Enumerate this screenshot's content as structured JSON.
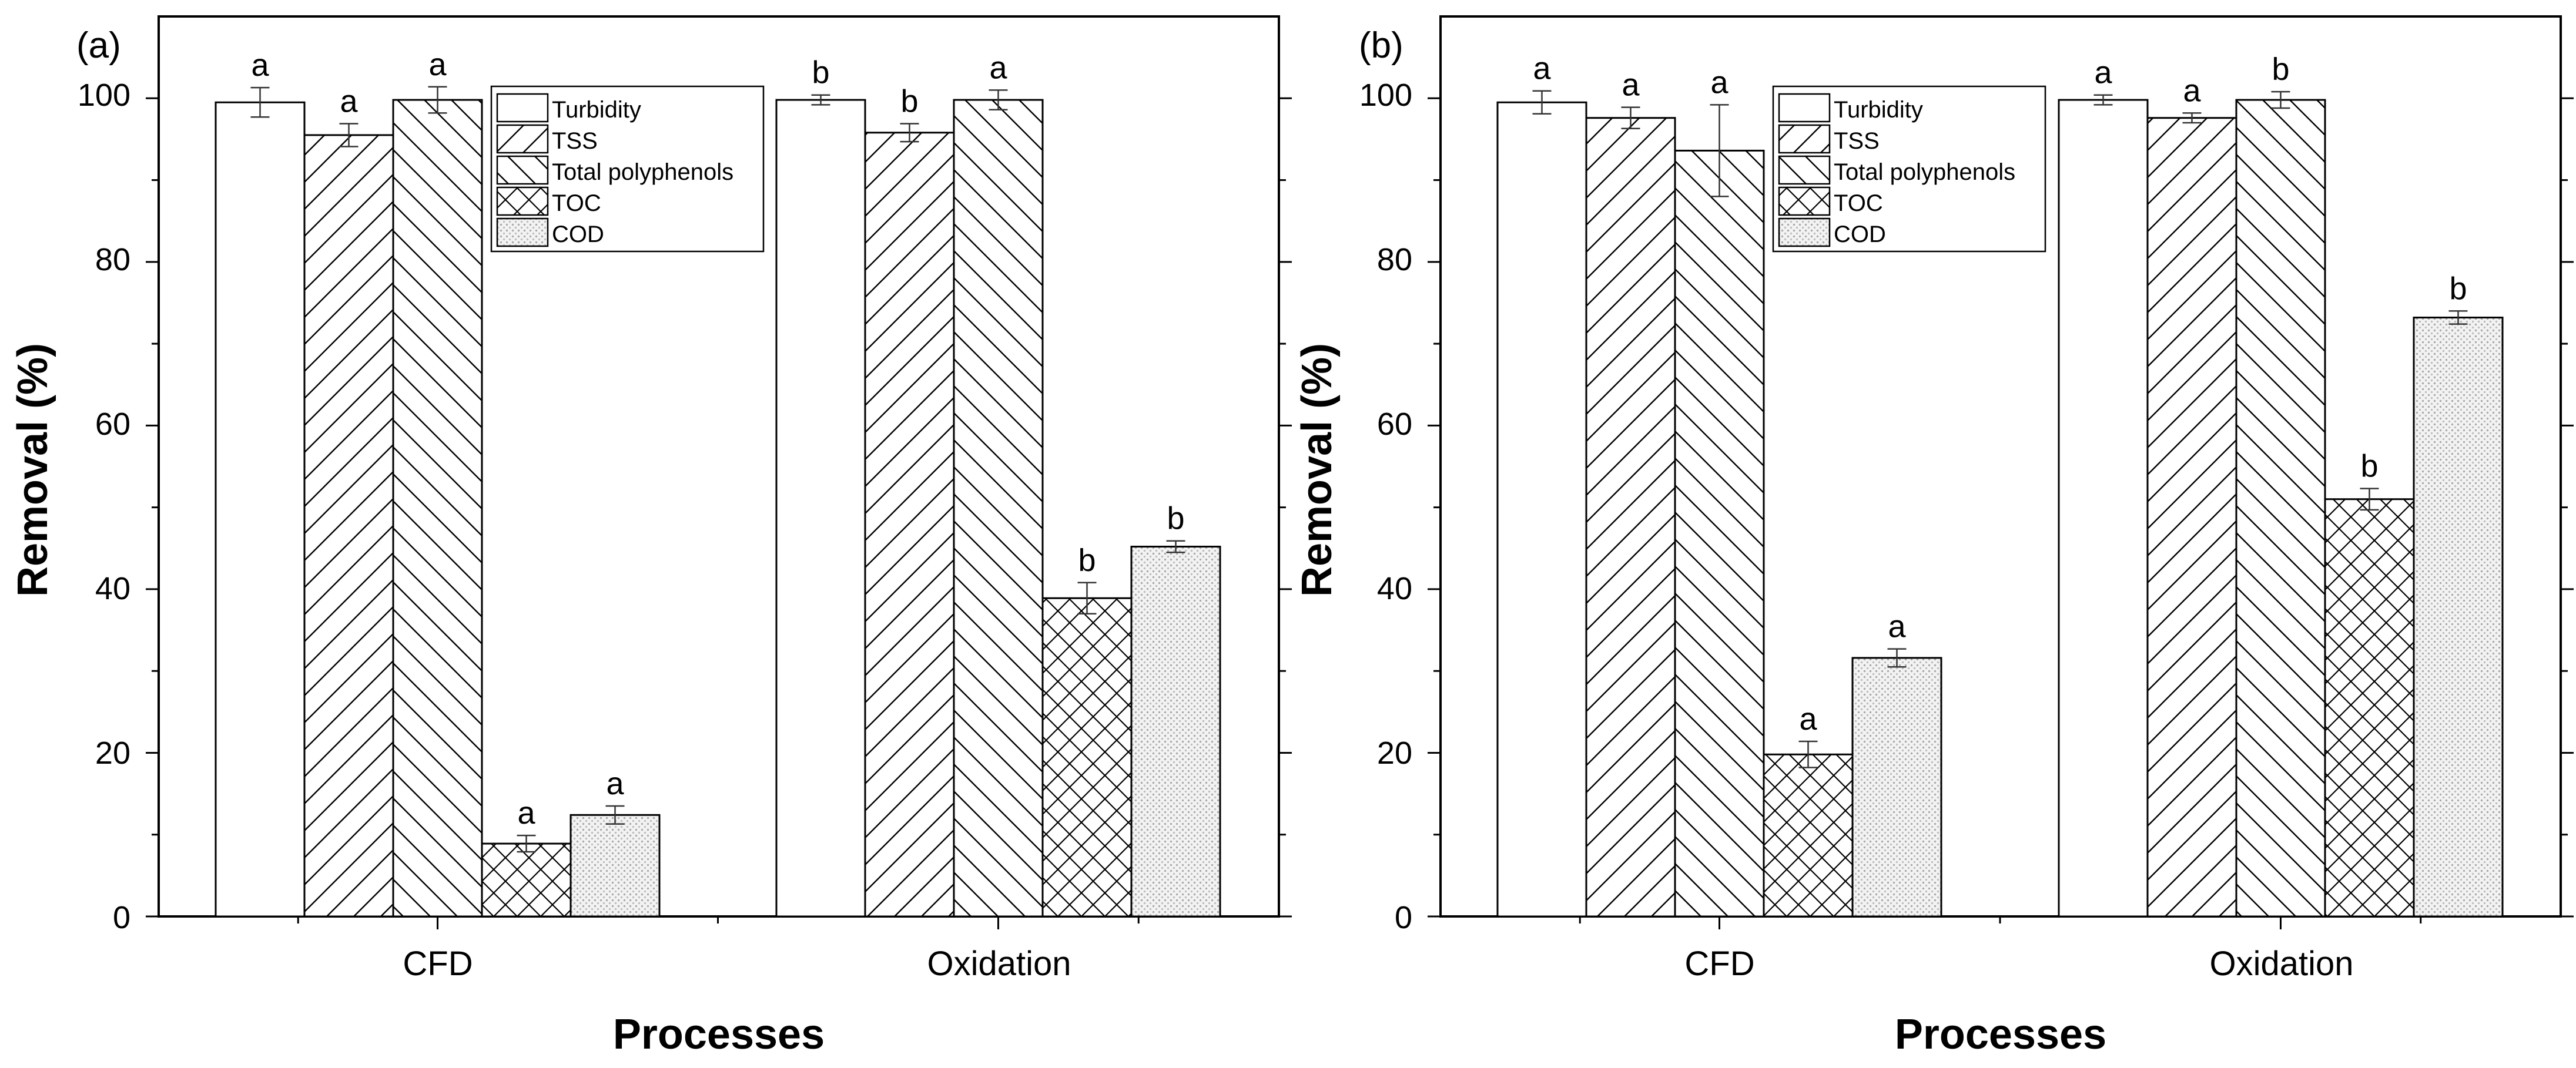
{
  "chart_data": [
    {
      "type": "bar",
      "panel_label": "(a)",
      "xlabel": "Processes",
      "ylabel": "Removal (%)",
      "ylim": [
        0,
        110
      ],
      "yticks": [
        "0",
        "20",
        "40",
        "60",
        "80",
        "100"
      ],
      "categories": [
        "CFD",
        "Oxidation"
      ],
      "legend_position": "top-center",
      "series": [
        {
          "name": "Turbidity",
          "pattern": "open",
          "values": [
            99.5,
            99.8
          ],
          "errors": [
            1.8,
            0.6
          ],
          "letters": [
            "a",
            "b"
          ]
        },
        {
          "name": "TSS",
          "pattern": "slash",
          "values": [
            95.5,
            95.8
          ],
          "errors": [
            1.4,
            1.1
          ],
          "letters": [
            "a",
            "b"
          ]
        },
        {
          "name": "Total polyphenols",
          "pattern": "backslash",
          "values": [
            99.8,
            99.8
          ],
          "errors": [
            1.6,
            1.2
          ],
          "letters": [
            "a",
            "a"
          ]
        },
        {
          "name": "TOC",
          "pattern": "crosshatch",
          "values": [
            8.9,
            38.9
          ],
          "errors": [
            1.0,
            1.9
          ],
          "letters": [
            "a",
            "b"
          ]
        },
        {
          "name": "COD",
          "pattern": "dots",
          "values": [
            12.4,
            45.2
          ],
          "errors": [
            1.1,
            0.7
          ],
          "letters": [
            "a",
            "b"
          ]
        }
      ]
    },
    {
      "type": "bar",
      "panel_label": "(b)",
      "xlabel": "Processes",
      "ylabel": "Removal (%)",
      "ylim": [
        0,
        110
      ],
      "yticks": [
        "0",
        "20",
        "40",
        "60",
        "80",
        "100"
      ],
      "categories": [
        "CFD",
        "Oxidation"
      ],
      "legend_position": "top-center",
      "series": [
        {
          "name": "Turbidity",
          "pattern": "open",
          "values": [
            99.5,
            99.8
          ],
          "errors": [
            1.4,
            0.6
          ],
          "letters": [
            "a",
            "a"
          ]
        },
        {
          "name": "TSS",
          "pattern": "slash",
          "values": [
            97.6,
            97.6
          ],
          "errors": [
            1.3,
            0.6
          ],
          "letters": [
            "a",
            "a"
          ]
        },
        {
          "name": "Total polyphenols",
          "pattern": "backslash",
          "values": [
            93.6,
            99.8
          ],
          "errors": [
            5.6,
            1.0
          ],
          "letters": [
            "a",
            "b"
          ]
        },
        {
          "name": "TOC",
          "pattern": "crosshatch",
          "values": [
            19.8,
            51.0
          ],
          "errors": [
            1.6,
            1.3
          ],
          "letters": [
            "a",
            "b"
          ]
        },
        {
          "name": "COD",
          "pattern": "dots",
          "values": [
            31.6,
            73.2
          ],
          "errors": [
            1.1,
            0.8
          ],
          "letters": [
            "a",
            "b"
          ]
        }
      ]
    }
  ]
}
